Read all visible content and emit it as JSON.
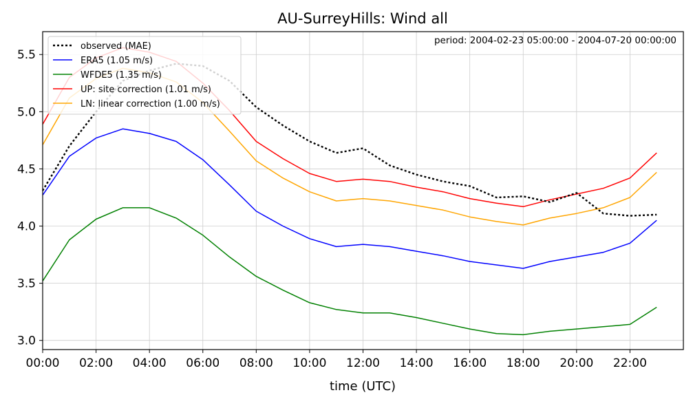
{
  "chart_data": {
    "type": "line",
    "title": "AU-SurreyHills: Wind all",
    "xlabel": "time (UTC)",
    "ylabel": "",
    "annotation": "period: 2004-02-23 05:00:00 - 2004-07-20 00:00:00",
    "x": [
      0,
      1,
      2,
      3,
      4,
      5,
      6,
      7,
      8,
      9,
      10,
      11,
      12,
      13,
      14,
      15,
      16,
      17,
      18,
      19,
      20,
      21,
      22,
      23
    ],
    "xlim": [
      0,
      24
    ],
    "ylim": [
      2.92,
      5.7
    ],
    "xticks": [
      0,
      2,
      4,
      6,
      8,
      10,
      12,
      14,
      16,
      18,
      20,
      22
    ],
    "xtick_labels": [
      "00:00",
      "02:00",
      "04:00",
      "06:00",
      "08:00",
      "10:00",
      "12:00",
      "14:00",
      "16:00",
      "18:00",
      "20:00",
      "22:00"
    ],
    "yticks": [
      3.0,
      3.5,
      4.0,
      4.5,
      5.0,
      5.5
    ],
    "ytick_labels": [
      "3.0",
      "3.5",
      "4.0",
      "4.5",
      "5.0",
      "5.5"
    ],
    "grid": true,
    "legend_position": "top-left",
    "series": [
      {
        "name": "observed (MAE)",
        "color": "#000000",
        "dash": "dotted",
        "values": [
          4.31,
          4.7,
          5.0,
          5.27,
          5.36,
          5.42,
          5.4,
          5.27,
          5.04,
          4.88,
          4.74,
          4.64,
          4.68,
          4.53,
          4.45,
          4.39,
          4.35,
          4.25,
          4.26,
          4.21,
          4.29,
          4.11,
          4.09,
          4.1
        ]
      },
      {
        "name": "ERA5 (1.05 m/s)",
        "color": "#0000ff",
        "dash": "solid",
        "values": [
          4.27,
          4.61,
          4.77,
          4.85,
          4.81,
          4.74,
          4.58,
          4.36,
          4.13,
          4.0,
          3.89,
          3.82,
          3.84,
          3.82,
          3.78,
          3.74,
          3.69,
          3.66,
          3.63,
          3.69,
          3.73,
          3.77,
          3.85,
          4.05
        ]
      },
      {
        "name": "WFDE5 (1.35 m/s)",
        "color": "#008000",
        "dash": "solid",
        "values": [
          3.52,
          3.88,
          4.06,
          4.16,
          4.16,
          4.07,
          3.92,
          3.73,
          3.56,
          3.44,
          3.33,
          3.27,
          3.24,
          3.24,
          3.2,
          3.15,
          3.1,
          3.06,
          3.05,
          3.08,
          3.1,
          3.12,
          3.14,
          3.29
        ]
      },
      {
        "name": "UP: site correction (1.01 m/s)",
        "color": "#ff0000",
        "dash": "solid",
        "values": [
          4.89,
          5.3,
          5.47,
          5.56,
          5.52,
          5.44,
          5.25,
          5.01,
          4.74,
          4.59,
          4.46,
          4.39,
          4.41,
          4.39,
          4.34,
          4.3,
          4.24,
          4.2,
          4.17,
          4.23,
          4.28,
          4.33,
          4.42,
          4.64
        ]
      },
      {
        "name": "LN: linear correction (1.00 m/s)",
        "color": "#ffa500",
        "dash": "solid",
        "values": [
          4.71,
          5.12,
          5.29,
          5.38,
          5.34,
          5.26,
          5.08,
          4.83,
          4.57,
          4.42,
          4.3,
          4.22,
          4.24,
          4.22,
          4.18,
          4.14,
          4.08,
          4.04,
          4.01,
          4.07,
          4.11,
          4.16,
          4.25,
          4.47
        ]
      }
    ]
  }
}
